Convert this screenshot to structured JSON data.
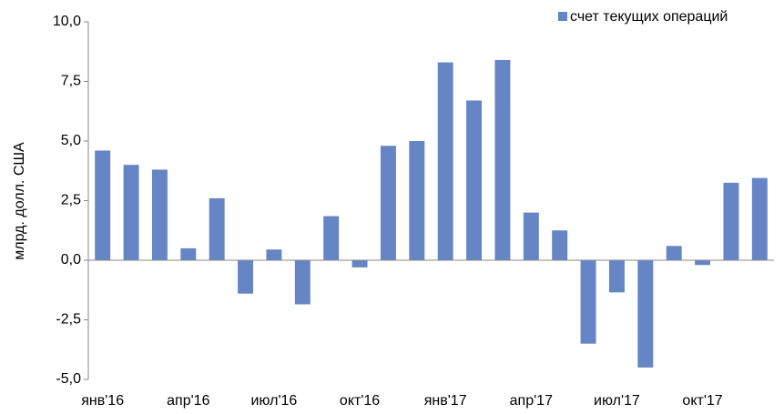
{
  "chart_data": {
    "type": "bar",
    "y_label": "млрд. долл. США",
    "categories": [
      "янв'16",
      null,
      null,
      "апр'16",
      null,
      null,
      "июл'16",
      null,
      null,
      "окт'16",
      null,
      null,
      "янв'17",
      null,
      null,
      "апр'17",
      null,
      null,
      "июл'17",
      null,
      null,
      "окт'17",
      null,
      null
    ],
    "series": [
      {
        "name": "счет текущих операций",
        "color": "#6585c4",
        "values": [
          4.6,
          4.0,
          3.8,
          0.5,
          2.6,
          -1.4,
          0.45,
          -1.85,
          1.85,
          -0.3,
          4.8,
          5.0,
          8.3,
          6.7,
          8.4,
          2.0,
          1.25,
          -3.5,
          -1.35,
          -4.5,
          0.6,
          -0.2,
          3.25,
          3.45
        ]
      }
    ],
    "ylim": [
      -5,
      10
    ],
    "yticks": [
      {
        "value": -5,
        "label": "-5,0"
      },
      {
        "value": -2.5,
        "label": "-2,5"
      },
      {
        "value": 0,
        "label": "0,0"
      },
      {
        "value": 2.5,
        "label": "2,5"
      },
      {
        "value": 5,
        "label": "5,0"
      },
      {
        "value": 7.5,
        "label": "7,5"
      },
      {
        "value": 10,
        "label": "10,0"
      }
    ],
    "legend": "top-right"
  }
}
